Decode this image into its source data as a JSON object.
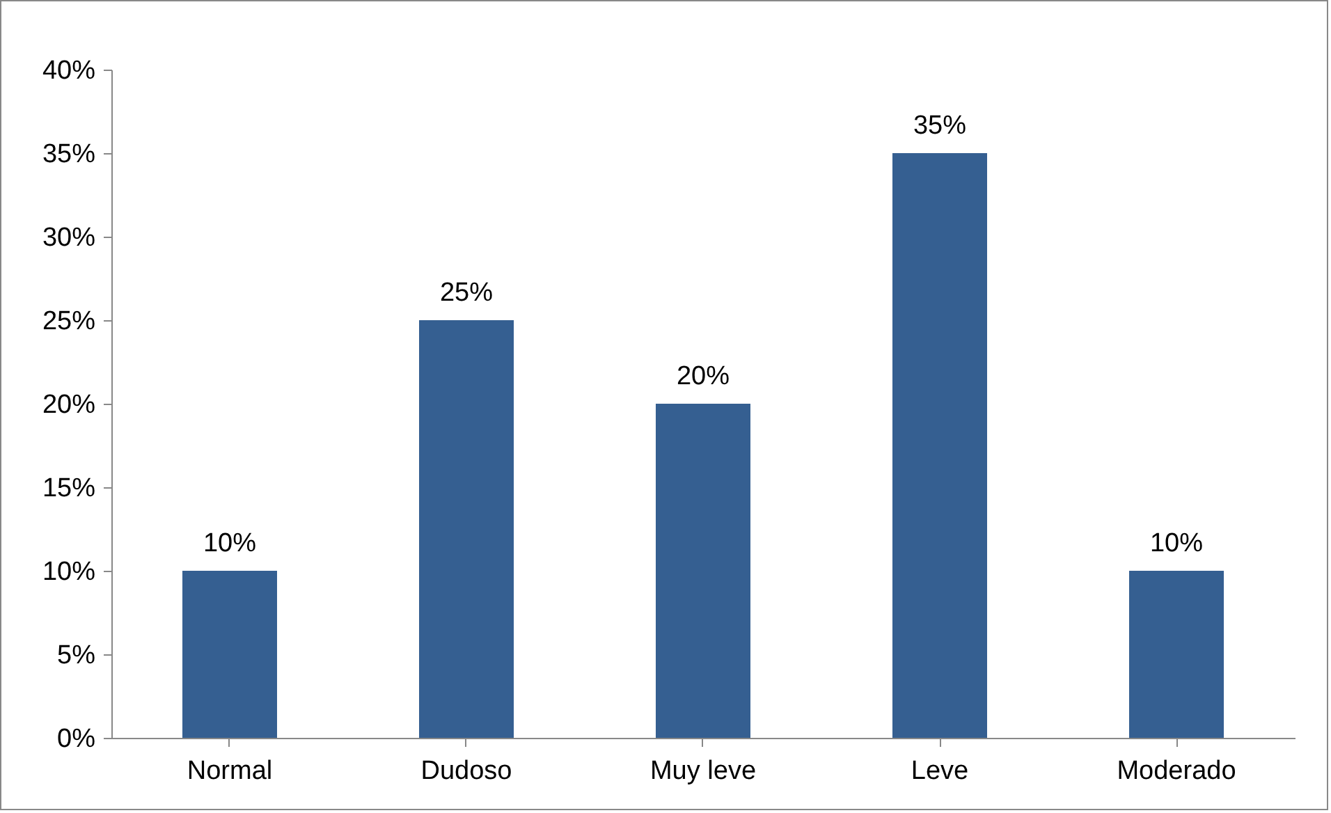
{
  "chart_data": {
    "type": "bar",
    "categories": [
      "Normal",
      "Dudoso",
      "Muy leve",
      "Leve",
      "Moderado"
    ],
    "values": [
      10,
      25,
      20,
      35,
      10
    ],
    "color": "#355f91",
    "value_labels": [
      "10%",
      "25%",
      "20%",
      "35%",
      "10%"
    ],
    "ylim": [
      0,
      40
    ],
    "yticks": [
      {
        "value": 0,
        "label": "0%"
      },
      {
        "value": 5,
        "label": "5%"
      },
      {
        "value": 10,
        "label": "10%"
      },
      {
        "value": 15,
        "label": "15%"
      },
      {
        "value": 20,
        "label": "20%"
      },
      {
        "value": 25,
        "label": "25%"
      },
      {
        "value": 30,
        "label": "30%"
      },
      {
        "value": 35,
        "label": "35%"
      },
      {
        "value": 40,
        "label": "40%"
      }
    ],
    "grid": false
  }
}
